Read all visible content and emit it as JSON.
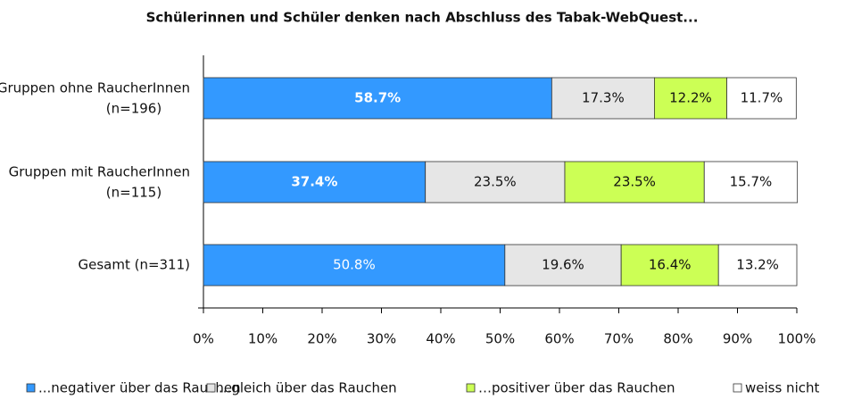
{
  "chart_data": {
    "type": "stacked_bar_horizontal",
    "title": "Schülerinnen und Schüler denken nach Abschluss des Tabak-WebQuest...",
    "categories": [
      "Gruppen ohne RaucherInnen\n(n=196)",
      "Gruppen mit RaucherInnen\n(n=115)",
      "Gesamt (n=311)"
    ],
    "series": [
      {
        "name": "...negativer über das Rauchen",
        "color": "#3399ff",
        "values": [
          58.7,
          37.4,
          50.8
        ],
        "value_labels": [
          "58.7%",
          "37.4%",
          "50.8%"
        ]
      },
      {
        "name": "...gleich über das Rauchen",
        "color": "#e6e6e6",
        "values": [
          17.3,
          23.5,
          19.6
        ],
        "value_labels": [
          "17.3%",
          "23.5%",
          "19.6%"
        ]
      },
      {
        "name": "…positiver über das Rauchen",
        "color": "#ccff55",
        "values": [
          12.2,
          23.5,
          16.4
        ],
        "value_labels": [
          "12.2%",
          "23.5%",
          "16.4%"
        ]
      },
      {
        "name": "weiss nicht",
        "color": "#ffffff",
        "values": [
          11.7,
          15.7,
          13.2
        ],
        "value_labels": [
          "11.7%",
          "15.7%",
          "13.2%"
        ]
      }
    ],
    "xlim": [
      0,
      100
    ],
    "xticks": [
      {
        "value": 0,
        "label": "0%"
      },
      {
        "value": 10,
        "label": "10%"
      },
      {
        "value": 20,
        "label": "20%"
      },
      {
        "value": 30,
        "label": "30%"
      },
      {
        "value": 40,
        "label": "40%"
      },
      {
        "value": 50,
        "label": "50%"
      },
      {
        "value": 60,
        "label": "60%"
      },
      {
        "value": 70,
        "label": "70%"
      },
      {
        "value": 80,
        "label": "80%"
      },
      {
        "value": 90,
        "label": "90%"
      },
      {
        "value": 100,
        "label": "100%"
      }
    ],
    "legend": "bottom"
  }
}
